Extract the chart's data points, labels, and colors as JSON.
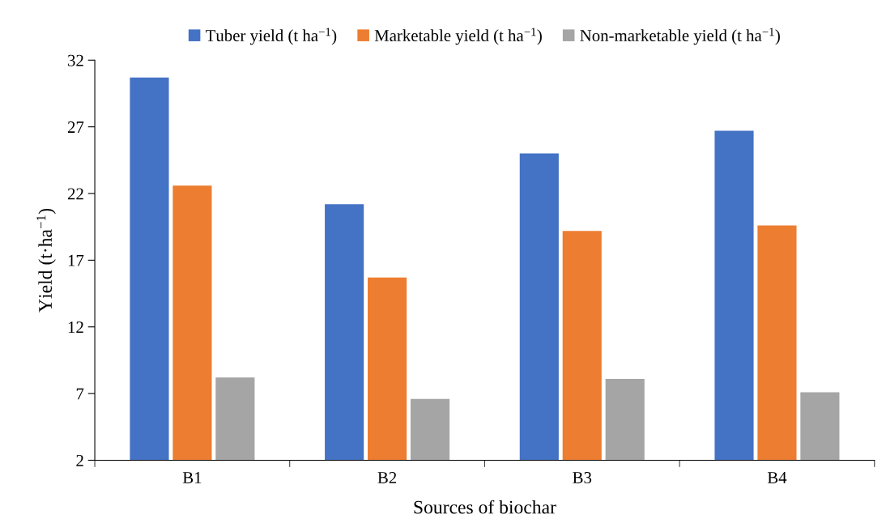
{
  "chart_data": {
    "type": "bar",
    "xlabel": "Sources of biochar",
    "ylabel": "Yield (t·ha$^{−1}$)",
    "categories": [
      "B1",
      "B2",
      "B3",
      "B4"
    ],
    "series": [
      {
        "name": "Tuber yield (t ha$^{−1}$)",
        "color": "#4472c4",
        "values": [
          30.7,
          21.2,
          25.0,
          26.7
        ]
      },
      {
        "name": "Marketable yield (t ha$^{−1}$)",
        "color": "#ed7d31",
        "values": [
          22.6,
          15.7,
          19.2,
          19.6
        ]
      },
      {
        "name": "Non-marketable yield (t ha$^{−1}$)",
        "color": "#a5a5a5",
        "values": [
          8.2,
          6.6,
          8.1,
          7.1
        ]
      }
    ],
    "ylim": [
      2,
      32
    ],
    "yticks": [
      2,
      7,
      12,
      17,
      22,
      27,
      32
    ],
    "grid": false,
    "legend": "top"
  }
}
